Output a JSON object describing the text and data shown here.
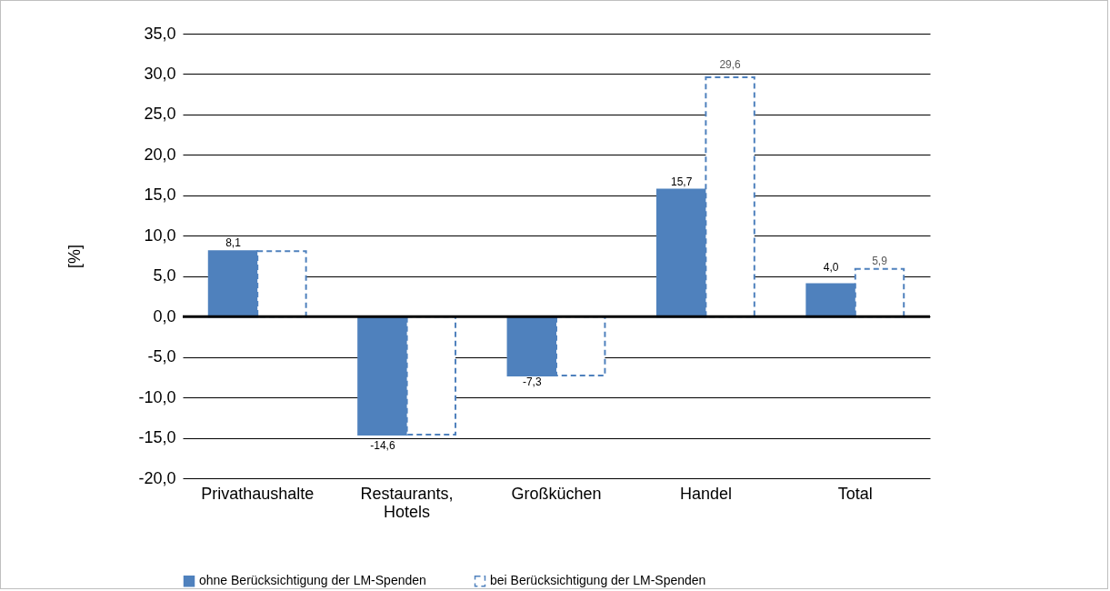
{
  "chart_data": {
    "type": "bar",
    "ylabel": "[%]",
    "categories": [
      "Privathaushalte",
      "Restaurants, Hotels",
      "Großküchen",
      "Handel",
      "Total"
    ],
    "series": [
      {
        "name": "ohne Berücksichtigung der LM-Spenden",
        "color": "#4f81bd",
        "values": [
          8.1,
          -14.6,
          -7.3,
          15.7,
          4.0
        ],
        "value_labels": [
          "8,1",
          "-14,6",
          "-7,3",
          "15,7",
          "4,0"
        ]
      },
      {
        "name": "bei Berücksichtigung der LM-Spenden",
        "color": "#4f81bd",
        "line_style": "dashed",
        "values": [
          8.1,
          -14.6,
          -7.3,
          29.6,
          5.9
        ],
        "value_labels": [
          null,
          null,
          null,
          "29,6",
          "5,9"
        ]
      }
    ],
    "ylim": [
      -20,
      35
    ],
    "yticks": [
      {
        "value": -20,
        "label": "-20,0"
      },
      {
        "value": -15,
        "label": "-15,0"
      },
      {
        "value": -10,
        "label": "-10,0"
      },
      {
        "value": -5,
        "label": "-5,0"
      },
      {
        "value": 0,
        "label": "0,0"
      },
      {
        "value": 5,
        "label": "5,0"
      },
      {
        "value": 10,
        "label": "10,0"
      },
      {
        "value": 15,
        "label": "15,0"
      },
      {
        "value": 20,
        "label": "20,0"
      },
      {
        "value": 25,
        "label": "25,0"
      },
      {
        "value": 30,
        "label": "30,0"
      },
      {
        "value": 35,
        "label": "35,0"
      }
    ],
    "ref_lines": [
      {
        "axis": "y",
        "value": 0,
        "color": "#000000"
      }
    ],
    "grid": "y",
    "legend": "bottom"
  }
}
